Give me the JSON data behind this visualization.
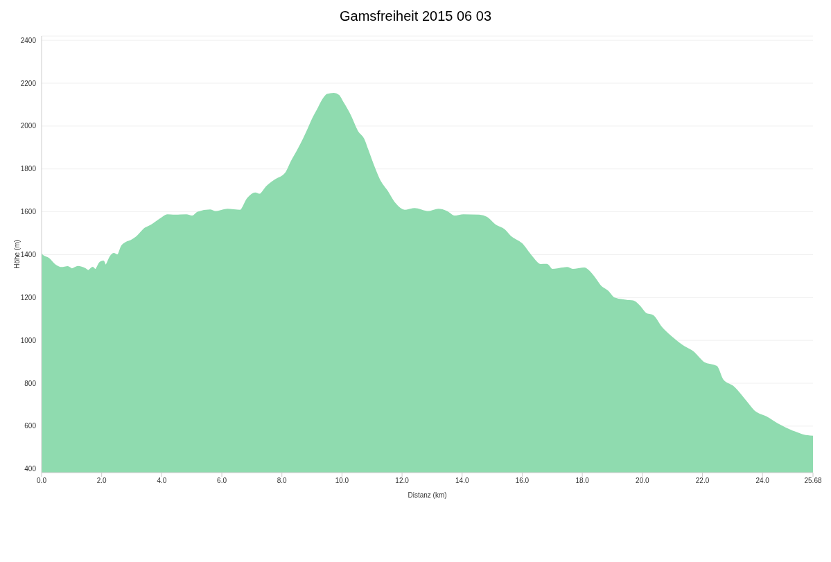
{
  "chart_data": {
    "type": "area",
    "title": "Gamsfreiheit 2015 06 03",
    "xlabel": "Distanz   (km)",
    "ylabel": "Höhe (m)",
    "x": [
      0,
      0.02,
      0.24,
      0.43,
      0.67,
      0.87,
      1.01,
      1.21,
      1.46,
      1.55,
      1.7,
      1.79,
      1.95,
      2.06,
      2.13,
      2.29,
      2.4,
      2.53,
      2.67,
      2.83,
      2.96,
      3.16,
      3.45,
      3.65,
      3.95,
      4.19,
      4.42,
      4.82,
      5.02,
      5.2,
      5.61,
      5.78,
      6.19,
      6.61,
      6.86,
      7.11,
      7.26,
      7.49,
      7.74,
      8.14,
      8.32,
      8.52,
      8.72,
      8.86,
      9.01,
      9.22,
      9.35,
      9.51,
      9.73,
      9.89,
      10.02,
      10.27,
      10.52,
      10.72,
      10.85,
      11.05,
      11.26,
      11.5,
      11.75,
      12.09,
      12.42,
      12.87,
      13.21,
      13.5,
      13.74,
      14.04,
      14.57,
      14.82,
      15.11,
      15.4,
      15.63,
      15.99,
      16.28,
      16.61,
      16.82,
      17.0,
      17.35,
      17.49,
      17.69,
      18.07,
      18.36,
      18.61,
      18.86,
      19.06,
      19.48,
      19.69,
      19.93,
      20.11,
      20.36,
      20.61,
      21.01,
      21.39,
      21.68,
      22.06,
      22.47,
      22.67,
      23.05,
      23.43,
      23.72,
      24.13,
      24.51,
      25.0,
      25.38,
      25.68
    ],
    "series": [
      {
        "color": "#8fdbaf",
        "values": [
          1403,
          1398,
          1381,
          1354,
          1339,
          1343,
          1333,
          1344,
          1333,
          1325,
          1340,
          1330,
          1364,
          1369,
          1350,
          1391,
          1405,
          1398,
          1440,
          1458,
          1464,
          1482,
          1523,
          1537,
          1566,
          1585,
          1583,
          1585,
          1579,
          1597,
          1608,
          1600,
          1611,
          1606,
          1662,
          1687,
          1681,
          1717,
          1745,
          1783,
          1835,
          1885,
          1939,
          1981,
          2029,
          2085,
          2120,
          2147,
          2152,
          2143,
          2113,
          2051,
          1974,
          1939,
          1891,
          1815,
          1745,
          1697,
          1641,
          1606,
          1614,
          1600,
          1611,
          1600,
          1579,
          1585,
          1583,
          1573,
          1537,
          1516,
          1482,
          1450,
          1398,
          1353,
          1354,
          1330,
          1337,
          1339,
          1330,
          1337,
          1301,
          1253,
          1228,
          1197,
          1186,
          1183,
          1156,
          1126,
          1114,
          1065,
          1011,
          970,
          947,
          895,
          878,
          817,
          781,
          719,
          670,
          642,
          609,
          576,
          557,
          552
        ]
      }
    ],
    "xlim": [
      0,
      25.68
    ],
    "ylim": [
      383,
      2420
    ],
    "xticks": [
      {
        "value": 0,
        "label": "0.0"
      },
      {
        "value": 2,
        "label": "2.0"
      },
      {
        "value": 4,
        "label": "4.0"
      },
      {
        "value": 6,
        "label": "6.0"
      },
      {
        "value": 8,
        "label": "8.0"
      },
      {
        "value": 10,
        "label": "10.0"
      },
      {
        "value": 12,
        "label": "12.0"
      },
      {
        "value": 14,
        "label": "14.0"
      },
      {
        "value": 16,
        "label": "16.0"
      },
      {
        "value": 18,
        "label": "18.0"
      },
      {
        "value": 20,
        "label": "20.0"
      },
      {
        "value": 22,
        "label": "22.0"
      },
      {
        "value": 24,
        "label": "24.0"
      },
      25.68
    ],
    "yticks": [
      400,
      600,
      800,
      1000,
      1200,
      1400,
      1600,
      1800,
      2000,
      2200,
      2400
    ],
    "grid": "y",
    "marker": "none",
    "line_style": "solid"
  }
}
